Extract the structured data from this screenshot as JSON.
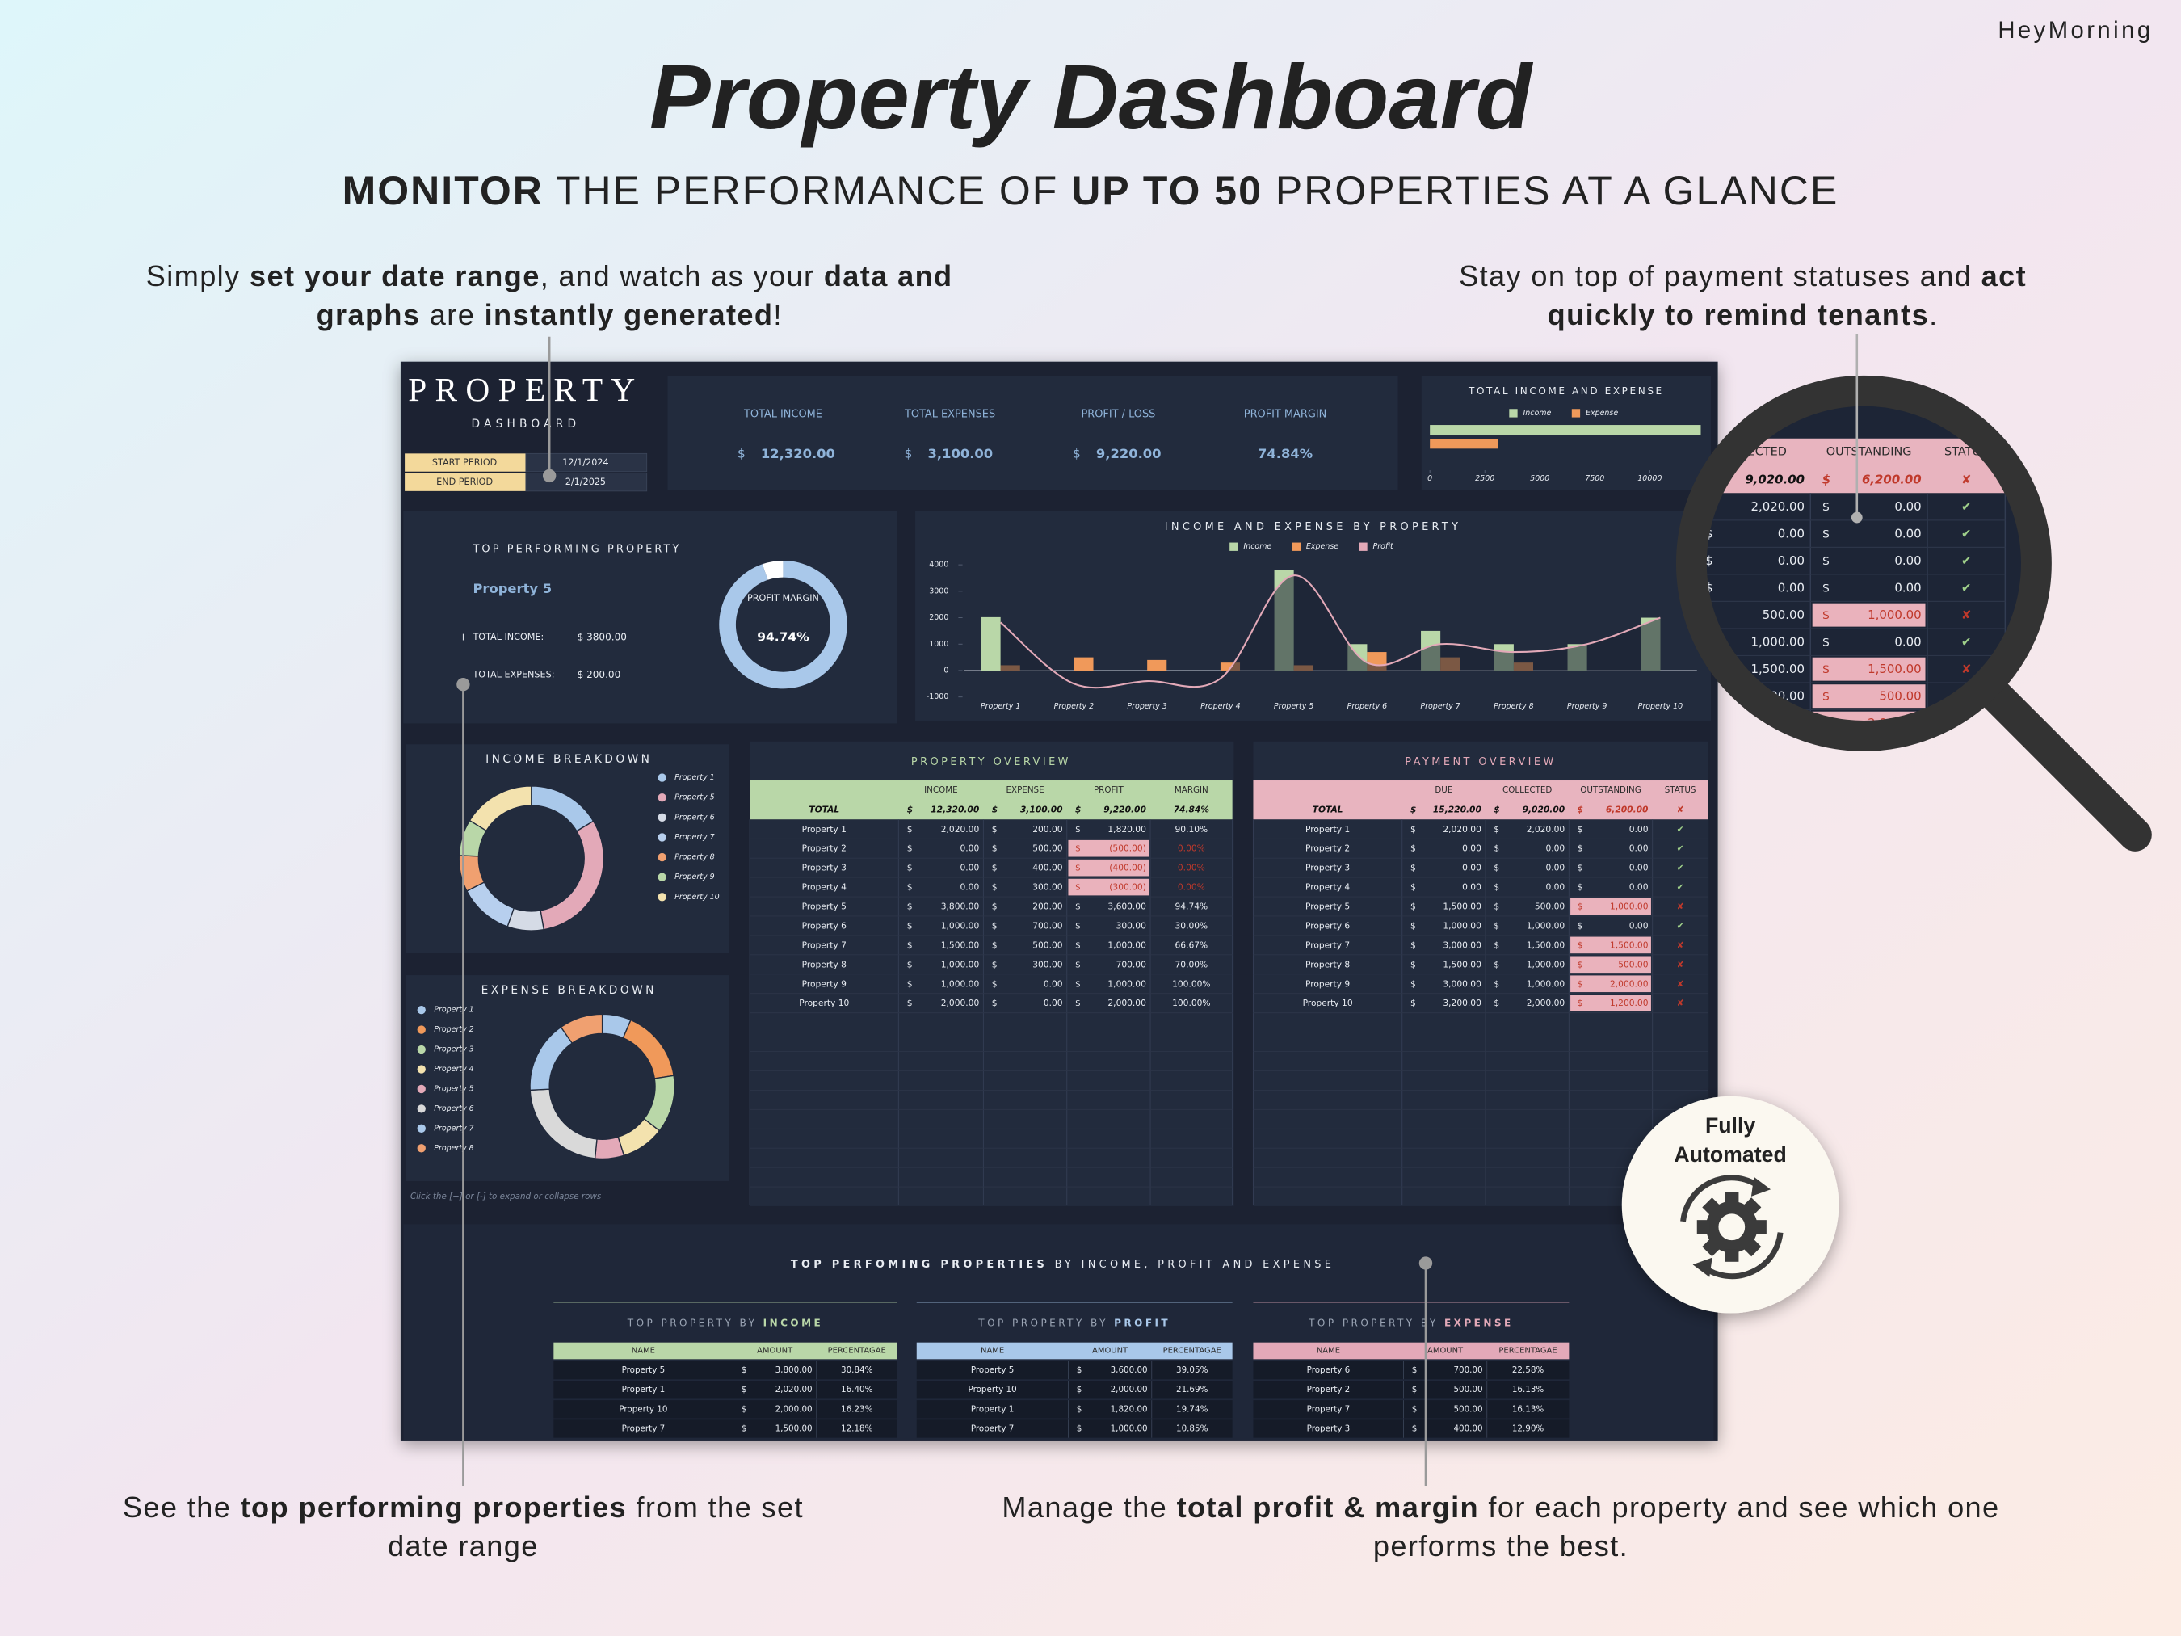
{
  "header": {
    "brand": "HeyMorning",
    "title": "Property Dashboard",
    "subtitle": [
      {
        "text": "MONITOR",
        "bold": true
      },
      {
        "text": " THE PERFORMANCE OF "
      },
      {
        "text": "UP TO 50",
        "bold": true
      },
      {
        "text": " PROPERTIES AT A GLANCE"
      }
    ]
  },
  "callouts": [
    {
      "lines": [
        [
          {
            "text": "Simply "
          },
          {
            "text": "set your date range",
            "bold": true
          },
          {
            "text": ", and watch as your "
          },
          {
            "text": "data and",
            "bold": true
          }
        ],
        [
          {
            "text": "graphs",
            "bold": true
          },
          {
            "text": " are "
          },
          {
            "text": "instantly generated",
            "bold": true
          },
          {
            "text": "!"
          }
        ]
      ]
    },
    {
      "lines": [
        [
          {
            "text": "Stay on top of payment statuses and "
          },
          {
            "text": "act",
            "bold": true
          }
        ],
        [
          {
            "text": "quickly to remind tenants",
            "bold": true
          },
          {
            "text": "."
          }
        ]
      ]
    },
    {
      "lines": [
        [
          {
            "text": "See the "
          },
          {
            "text": "top performing properties",
            "bold": true
          },
          {
            "text": " from the set"
          }
        ],
        [
          {
            "text": "date range"
          }
        ]
      ]
    },
    {
      "lines": [
        [
          {
            "text": "Manage the "
          },
          {
            "text": "total profit & margin",
            "bold": true
          },
          {
            "text": " for each property and see which one"
          }
        ],
        [
          {
            "text": "performs the best."
          }
        ]
      ]
    }
  ],
  "badge": {
    "lines": [
      "Fully",
      "Automated"
    ]
  },
  "dashboard": {
    "logo": {
      "title": "PROPERTY",
      "subtitle": "DASHBOARD"
    },
    "period": [
      {
        "label": "START PERIOD",
        "value": "12/1/2024"
      },
      {
        "label": "END PERIOD",
        "value": "2/1/2025"
      }
    ],
    "currency": "$",
    "kpis": [
      {
        "label": "TOTAL INCOME",
        "value": "12,320.00",
        "currency": true
      },
      {
        "label": "TOTAL EXPENSES",
        "value": "3,100.00",
        "currency": true
      },
      {
        "label": "PROFIT / LOSS",
        "value": "9,220.00",
        "currency": true
      },
      {
        "label": "PROFIT MARGIN",
        "value": "74.84%"
      }
    ],
    "top_property": {
      "title": "TOP PERFORMING PROPERTY",
      "name": "Property 5",
      "income_sign": "+",
      "income_label": "TOTAL INCOME:",
      "income": "$ 3800.00",
      "expense_sign": "–",
      "expense_label": "TOTAL EXPENSES:",
      "expense": "$ 200.00"
    },
    "note": "Click the [+] or [-] to expand or collapse rows"
  },
  "chart_data": [
    {
      "type": "hbar",
      "title": "TOTAL INCOME AND EXPENSE",
      "series": [
        {
          "name": "Income",
          "color": "#b9d7a8",
          "values": [
            12320
          ]
        },
        {
          "name": "Expense",
          "color": "#f0995a",
          "values": [
            3100
          ]
        }
      ],
      "xlim": [
        0,
        12400
      ],
      "xticks": [
        0,
        2500,
        5000,
        7500,
        10000
      ]
    },
    {
      "type": "combo",
      "title": "INCOME AND EXPENSE BY PROPERTY",
      "categories": [
        "Property 1",
        "Property 2",
        "Property 3",
        "Property 4",
        "Property 5",
        "Property 6",
        "Property 7",
        "Property 8",
        "Property 9",
        "Property 10"
      ],
      "series": [
        {
          "name": "Income",
          "kind": "bar",
          "color": "#b9d7a8",
          "values": [
            2020,
            0,
            0,
            0,
            3800,
            1000,
            1500,
            1000,
            1000,
            2000
          ]
        },
        {
          "name": "Expense",
          "kind": "bar",
          "color": "#f0995a",
          "values": [
            200,
            500,
            400,
            300,
            200,
            700,
            500,
            300,
            0,
            0
          ]
        },
        {
          "name": "Profit",
          "kind": "line",
          "color": "#e3a9b8",
          "values": [
            1820,
            -500,
            -400,
            -300,
            3600,
            300,
            1000,
            700,
            1000,
            2000
          ]
        }
      ],
      "ylim": [
        -1000,
        4000
      ],
      "yticks": [
        4000,
        3000,
        2000,
        1000,
        0,
        -1000
      ]
    },
    {
      "type": "donut",
      "title": "INCOME BREAKDOWN",
      "categories": [
        "Property 1",
        "Property 5",
        "Property 6",
        "Property 7",
        "Property 8",
        "Property 9",
        "Property 10"
      ],
      "values": [
        2020,
        3800,
        1000,
        1500,
        1000,
        1000,
        2000
      ],
      "colors": [
        "#a9c8ea",
        "#e3a9b8",
        "#d5dbe6",
        "#b7cfee",
        "#f0a070",
        "#b9d7a8",
        "#f3e2ae"
      ]
    },
    {
      "type": "donut",
      "title": "EXPENSE BREAKDOWN",
      "categories": [
        "Property 1",
        "Property 2",
        "Property 3",
        "Property 4",
        "Property 5",
        "Property 6",
        "Property 7",
        "Property 8"
      ],
      "values": [
        200,
        500,
        400,
        300,
        200,
        700,
        500,
        300
      ],
      "colors": [
        "#a9c8ea",
        "#f0995a",
        "#b9d7a8",
        "#f3e2ae",
        "#e3a9b8",
        "#d9d9d9",
        "#a9c8ea",
        "#f0a070"
      ]
    },
    {
      "type": "gauge",
      "label": "PROFIT MARGIN",
      "value": 94.74,
      "value_label": "94.74%",
      "range": [
        0,
        100
      ],
      "color": "#a9c8ea",
      "rest_color": "#ffffff"
    }
  ],
  "property_overview": {
    "title": "PROPERTY OVERVIEW",
    "title_color": "#b9d7a8",
    "band_color": "#b9d7a8",
    "columns": [
      "INCOME",
      "EXPENSE",
      "PROFIT",
      "MARGIN"
    ],
    "total": [
      "TOTAL",
      "12,320.00",
      "3,100.00",
      "9,220.00",
      "74.84%"
    ],
    "total_alert": false,
    "alert_col": 3,
    "currency_cols": [
      1,
      2,
      3
    ],
    "rows": [
      [
        "Property 1",
        "2,020.00",
        "200.00",
        "1,820.00",
        "90.10%"
      ],
      [
        "Property 2",
        "0.00",
        "500.00",
        "(500.00)",
        "0.00%"
      ],
      [
        "Property 3",
        "0.00",
        "400.00",
        "(400.00)",
        "0.00%"
      ],
      [
        "Property 4",
        "0.00",
        "300.00",
        "(300.00)",
        "0.00%"
      ],
      [
        "Property 5",
        "3,800.00",
        "200.00",
        "3,600.00",
        "94.74%"
      ],
      [
        "Property 6",
        "1,000.00",
        "700.00",
        "300.00",
        "30.00%"
      ],
      [
        "Property 7",
        "1,500.00",
        "500.00",
        "1,000.00",
        "66.67%"
      ],
      [
        "Property 8",
        "1,000.00",
        "300.00",
        "700.00",
        "70.00%"
      ],
      [
        "Property 9",
        "1,000.00",
        "0.00",
        "1,000.00",
        "100.00%"
      ],
      [
        "Property 10",
        "2,000.00",
        "0.00",
        "2,000.00",
        "100.00%"
      ]
    ],
    "alerts": [
      false,
      true,
      true,
      true,
      false,
      false,
      false,
      false,
      false,
      false
    ]
  },
  "payment_overview": {
    "title": "PAYMENT OVERVIEW",
    "title_color": "#e3a9b8",
    "band_color": "#e8b4bf",
    "columns": [
      "DUE",
      "COLLECTED",
      "OUTSTANDING",
      "STATUS"
    ],
    "total": [
      "TOTAL",
      "15,220.00",
      "9,020.00",
      "6,200.00",
      "✘"
    ],
    "total_alert": true,
    "alert_col": 3,
    "status_col": 4,
    "currency_cols": [
      1,
      2,
      3
    ],
    "rows": [
      [
        "Property 1",
        "2,020.00",
        "2,020.00",
        "0.00",
        "✔"
      ],
      [
        "Property 2",
        "0.00",
        "0.00",
        "0.00",
        "✔"
      ],
      [
        "Property 3",
        "0.00",
        "0.00",
        "0.00",
        "✔"
      ],
      [
        "Property 4",
        "0.00",
        "0.00",
        "0.00",
        "✔"
      ],
      [
        "Property 5",
        "1,500.00",
        "500.00",
        "1,000.00",
        "✘"
      ],
      [
        "Property 6",
        "1,000.00",
        "1,000.00",
        "0.00",
        "✔"
      ],
      [
        "Property 7",
        "3,000.00",
        "1,500.00",
        "1,500.00",
        "✘"
      ],
      [
        "Property 8",
        "1,500.00",
        "1,000.00",
        "500.00",
        "✘"
      ],
      [
        "Property 9",
        "3,000.00",
        "1,000.00",
        "2,000.00",
        "✘"
      ],
      [
        "Property 10",
        "3,200.00",
        "2,000.00",
        "1,200.00",
        "✘"
      ]
    ],
    "alerts": [
      false,
      false,
      false,
      false,
      true,
      false,
      true,
      true,
      true,
      true
    ]
  },
  "bottom": {
    "title": [
      {
        "text": "TOP PERFOMING PROPERTIES",
        "bold": true
      },
      {
        "text": " BY INCOME, PROFIT AND EXPENSE"
      }
    ]
  },
  "top_tables": [
    {
      "title": [
        {
          "text": "TOP PROPERTY BY "
        },
        {
          "text": "INCOME",
          "bold": true
        }
      ],
      "color": "#b9d7a8",
      "columns": [
        "NAME",
        "AMOUNT",
        "PERCENTAGAE"
      ],
      "rows": [
        [
          "Property 5",
          "3,800.00",
          "30.84%"
        ],
        [
          "Property 1",
          "2,020.00",
          "16.40%"
        ],
        [
          "Property 10",
          "2,000.00",
          "16.23%"
        ],
        [
          "Property 7",
          "1,500.00",
          "12.18%"
        ]
      ]
    },
    {
      "title": [
        {
          "text": "TOP PROPERTY BY "
        },
        {
          "text": "PROFIT",
          "bold": true
        }
      ],
      "color": "#a9c8ea",
      "columns": [
        "NAME",
        "AMOUNT",
        "PERCENTAGAE"
      ],
      "rows": [
        [
          "Property 5",
          "3,600.00",
          "39.05%"
        ],
        [
          "Property 10",
          "2,000.00",
          "21.69%"
        ],
        [
          "Property 1",
          "1,820.00",
          "19.74%"
        ],
        [
          "Property 7",
          "1,000.00",
          "10.85%"
        ]
      ]
    },
    {
      "title": [
        {
          "text": "TOP PROPERTY BY "
        },
        {
          "text": "EXPENSE",
          "bold": true
        }
      ],
      "color": "#e3a9b8",
      "columns": [
        "NAME",
        "AMOUNT",
        "PERCENTAGAE"
      ],
      "rows": [
        [
          "Property 6",
          "700.00",
          "22.58%"
        ],
        [
          "Property 2",
          "500.00",
          "16.13%"
        ],
        [
          "Property 7",
          "500.00",
          "16.13%"
        ],
        [
          "Property 3",
          "400.00",
          "12.90%"
        ]
      ]
    }
  ]
}
